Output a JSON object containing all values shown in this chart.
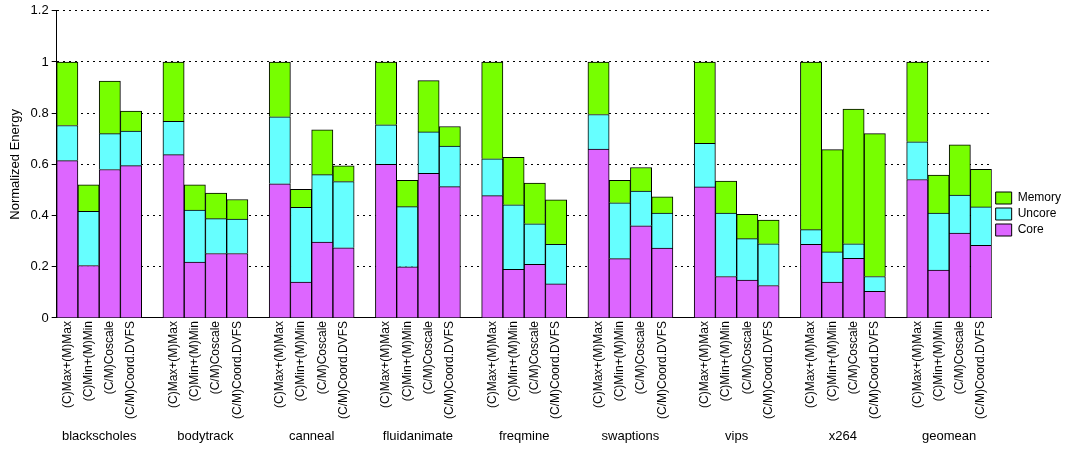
{
  "chart_data": {
    "type": "bar",
    "stacked": true,
    "ylabel": "Normalized Energy",
    "categories": [
      "(C)Max+(M)Max",
      "(C)Min+(M)Min",
      "(C/M)Coscale",
      "(C/M)Coord.DVFS",
      null,
      "(C)Max+(M)Max",
      "(C)Min+(M)Min",
      "(C/M)Coscale",
      "(C/M)Coord.DVFS",
      null,
      "(C)Max+(M)Max",
      "(C)Min+(M)Min",
      "(C/M)Coscale",
      "(C/M)Coord.DVFS",
      null,
      "(C)Max+(M)Max",
      "(C)Min+(M)Min",
      "(C/M)Coscale",
      "(C/M)Coord.DVFS",
      null,
      "(C)Max+(M)Max",
      "(C)Min+(M)Min",
      "(C/M)Coscale",
      "(C/M)Coord.DVFS",
      null,
      "(C)Max+(M)Max",
      "(C)Min+(M)Min",
      "(C/M)Coscale",
      "(C/M)Coord.DVFS",
      null,
      "(C)Max+(M)Max",
      "(C)Min+(M)Min",
      "(C/M)Coscale",
      "(C/M)Coord.DVFS",
      null,
      "(C)Max+(M)Max",
      "(C)Min+(M)Min",
      "(C/M)Coscale",
      "(C/M)Coord.DVFS",
      null,
      "(C)Max+(M)Max",
      "(C)Min+(M)Min",
      "(C/M)Coscale",
      "(C/M)Coord.DVFS"
    ],
    "series": [
      {
        "name": "Core",
        "color": "#dd66ff",
        "values": [
          0.615,
          0.205,
          0.58,
          0.595,
          null,
          0.638,
          0.218,
          0.252,
          0.252,
          null,
          0.524,
          0.14,
          0.297,
          0.274,
          null,
          0.6,
          0.2,
          0.565,
          0.513,
          null,
          0.478,
          0.19,
          0.21,
          0.133,
          null,
          0.66,
          0.232,
          0.36,
          0.273,
          null,
          0.512,
          0.162,
          0.148,
          0.127,
          null,
          0.288,
          0.14,
          0.233,
          0.104,
          null,
          0.541,
          0.187,
          0.332,
          0.284
        ]
      },
      {
        "name": "Uncore",
        "color": "#66ffff",
        "values": [
          0.137,
          0.212,
          0.14,
          0.135,
          null,
          0.13,
          0.204,
          0.136,
          0.134,
          null,
          0.262,
          0.292,
          0.263,
          0.259,
          null,
          0.155,
          0.235,
          0.162,
          0.159,
          null,
          0.144,
          0.252,
          0.158,
          0.155,
          null,
          0.135,
          0.218,
          0.136,
          0.137,
          null,
          0.17,
          0.248,
          0.162,
          0.163,
          null,
          0.057,
          0.118,
          0.057,
          0.058,
          null,
          0.147,
          0.223,
          0.148,
          0.15
        ]
      },
      {
        "name": "Memory",
        "color": "#77ff00",
        "values": [
          0.248,
          0.103,
          0.205,
          0.078,
          null,
          0.232,
          0.098,
          0.1,
          0.077,
          null,
          0.214,
          0.071,
          0.175,
          0.061,
          null,
          0.245,
          0.103,
          0.2,
          0.076,
          null,
          0.378,
          0.186,
          0.159,
          0.174,
          null,
          0.205,
          0.088,
          0.092,
          0.063,
          null,
          0.318,
          0.125,
          0.095,
          0.092,
          null,
          0.655,
          0.4,
          0.526,
          0.558,
          null,
          0.312,
          0.148,
          0.196,
          0.147
        ]
      }
    ],
    "annotations": [
      "blackscholes",
      "bodytrack",
      "canneal",
      "fluidanimate",
      "freqmine",
      "swaptions",
      "vips",
      "x264",
      "geomean"
    ],
    "ylim": [
      0,
      1.2
    ],
    "yticks": [
      0,
      0.2,
      0.4,
      0.6,
      0.8,
      1,
      1.2
    ],
    "grid": "y",
    "legend": "right",
    "line_style": "dotted"
  }
}
